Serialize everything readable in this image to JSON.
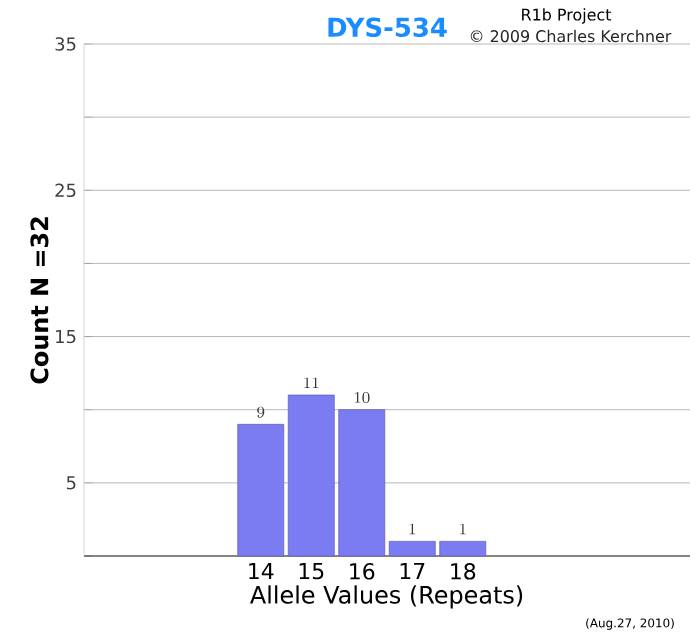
{
  "chart_data": {
    "type": "bar",
    "title": "DYS-534",
    "xlabel": "Allele Values (Repeats)",
    "ylabel": "Count N =32",
    "categories": [
      null,
      null,
      null,
      "14",
      "15",
      "16",
      "17",
      "18",
      null,
      null,
      null,
      null
    ],
    "values": [
      null,
      null,
      null,
      9,
      11,
      10,
      1,
      1,
      null,
      null,
      null,
      null
    ],
    "color": "#7b7bf2",
    "ylim": [
      0,
      35
    ],
    "yticks": [
      {
        "value": 0,
        "label": null
      },
      5,
      {
        "value": 10,
        "label": null
      },
      15,
      {
        "value": 20,
        "label": null
      },
      25,
      {
        "value": 30,
        "label": null
      },
      35
    ],
    "grid": "y",
    "data_labels": true,
    "annotations": [
      "R1b Project",
      "© 2009 Charles Kerchner",
      "(Aug.27, 2010)"
    ]
  }
}
